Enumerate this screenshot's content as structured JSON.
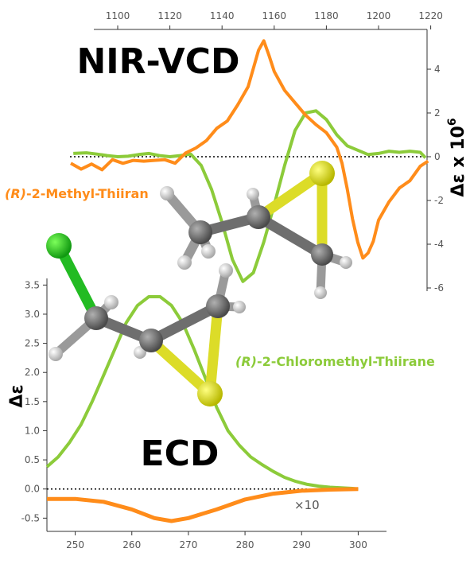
{
  "colors": {
    "nir_vcd": "#ff8c1a",
    "ecd_chloro": "#8ccb3a",
    "ecd_methyl": "#ff8c1a",
    "carbon": "#6e6e6e",
    "hydrogen": "#e6e6e6",
    "sulfur": "#dcdc28",
    "chlorine": "#22bb22"
  },
  "labels": {
    "nir_title": "NIR-VCD",
    "ecd_title": "ECD",
    "methyl_r": "(R)",
    "methyl_rest": "-2-Methyl-Thiiran",
    "chloro_r": "(R)",
    "chloro_rest": "-2-Chloromethyl-Thiirane",
    "scale": "×10"
  },
  "chart_data": [
    {
      "type": "line",
      "name": "NIR-VCD",
      "ylabel_base": "Δε x 10",
      "ylabel_exp": "6",
      "xlim": [
        1075,
        1225
      ],
      "ylim": [
        -6,
        6
      ],
      "xticks": [
        1100,
        1120,
        1140,
        1160,
        1180,
        1200,
        1220
      ],
      "yticks": [
        4,
        2,
        0,
        -2,
        -4,
        -6
      ],
      "zero_line": true,
      "series": [
        {
          "color_key": "nir_vcd",
          "x": [
            1082,
            1086,
            1090,
            1094,
            1098,
            1102,
            1106,
            1110,
            1114,
            1118,
            1122,
            1126,
            1130,
            1134,
            1138,
            1142,
            1146,
            1150,
            1154,
            1156,
            1158,
            1160,
            1164,
            1168,
            1172,
            1176,
            1180,
            1184,
            1186,
            1188,
            1190,
            1192,
            1194,
            1196,
            1198,
            1200,
            1204,
            1208,
            1212,
            1216,
            1219
          ],
          "y": [
            -0.4,
            -0.6,
            -0.3,
            -0.5,
            -0.2,
            -0.3,
            -0.1,
            -0.3,
            -0.2,
            -0.1,
            -0.2,
            0.1,
            0.4,
            0.8,
            1.2,
            1.6,
            2.4,
            3.3,
            4.8,
            5.3,
            4.7,
            3.8,
            3.0,
            2.5,
            2.0,
            1.4,
            1.1,
            0.5,
            -0.4,
            -1.5,
            -2.8,
            -3.8,
            -4.7,
            -4.4,
            -3.8,
            -3.0,
            -2.1,
            -1.4,
            -1.0,
            -0.5,
            -0.2
          ]
        },
        {
          "color_key": "ecd_chloro",
          "x": [
            1083,
            1088,
            1092,
            1096,
            1100,
            1104,
            1108,
            1112,
            1116,
            1120,
            1124,
            1128,
            1132,
            1136,
            1140,
            1144,
            1148,
            1152,
            1156,
            1160,
            1164,
            1168,
            1172,
            1176,
            1180,
            1184,
            1188,
            1192,
            1196,
            1200,
            1204,
            1208,
            1212,
            1216,
            1218
          ],
          "y": [
            0.15,
            0.18,
            0.12,
            0.05,
            0.0,
            0.02,
            0.1,
            0.15,
            0.05,
            0.0,
            0.05,
            0.12,
            -0.4,
            -1.5,
            -3.0,
            -4.7,
            -5.7,
            -5.3,
            -3.9,
            -2.2,
            -0.4,
            1.2,
            2.0,
            2.1,
            1.7,
            1.0,
            0.5,
            0.3,
            0.1,
            0.15,
            0.25,
            0.2,
            0.25,
            0.2,
            -0.05
          ]
        }
      ]
    },
    {
      "type": "line",
      "name": "ECD",
      "ylabel": "Δε",
      "xlim": [
        245,
        305
      ],
      "ylim": [
        -0.7,
        3.6
      ],
      "xticks": [
        250,
        260,
        270,
        280,
        290,
        300
      ],
      "yticks": [
        3.5,
        3.0,
        2.5,
        2.0,
        1.5,
        1.0,
        0.5,
        0.0,
        -0.5
      ],
      "zero_line": true,
      "series": [
        {
          "color_key": "ecd_chloro",
          "x": [
            245,
            247,
            249,
            251,
            253,
            255,
            257,
            259,
            261,
            263,
            265,
            267,
            269,
            271,
            273,
            275,
            277,
            279,
            281,
            283,
            285,
            287,
            289,
            291,
            293,
            295,
            297,
            299,
            300
          ],
          "y": [
            0.38,
            0.55,
            0.8,
            1.1,
            1.5,
            1.95,
            2.4,
            2.85,
            3.15,
            3.3,
            3.3,
            3.15,
            2.85,
            2.4,
            1.9,
            1.4,
            1.0,
            0.75,
            0.55,
            0.42,
            0.3,
            0.2,
            0.13,
            0.08,
            0.05,
            0.03,
            0.02,
            0.01,
            0.0
          ]
        },
        {
          "color_key": "ecd_methyl",
          "x": [
            245,
            250,
            255,
            260,
            264,
            267,
            270,
            275,
            280,
            285,
            290,
            295,
            300
          ],
          "y": [
            -0.17,
            -0.17,
            -0.22,
            -0.35,
            -0.5,
            -0.55,
            -0.5,
            -0.35,
            -0.18,
            -0.08,
            -0.03,
            -0.01,
            0.0
          ]
        }
      ]
    }
  ]
}
